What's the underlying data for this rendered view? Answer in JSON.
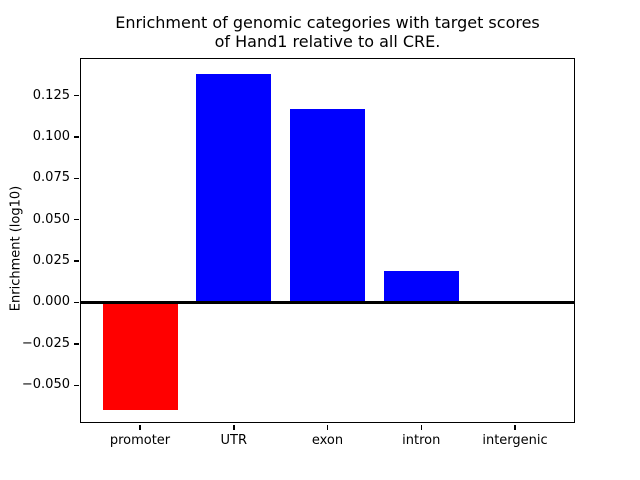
{
  "chart_data": {
    "type": "bar",
    "title": "Enrichment of genomic categories with target scores\nof Hand1 relative to all CRE.",
    "xlabel": "",
    "ylabel": "Enrichment (log10)",
    "categories": [
      "promoter",
      "UTR",
      "exon",
      "intron",
      "intergenic"
    ],
    "values": [
      -0.065,
      0.138,
      0.117,
      0.019,
      0.0
    ],
    "bar_colors": [
      "#ff0000",
      "#0000ff",
      "#0000ff",
      "#0000ff",
      "#0000ff"
    ],
    "positive_color": "#0000ff",
    "negative_color": "#ff0000",
    "ylim": [
      -0.0728,
      0.1477
    ],
    "xlim": [
      -0.64,
      4.64
    ],
    "bar_width": 0.8,
    "yticks": [
      0.125,
      0.1,
      0.075,
      0.05,
      0.025,
      0.0,
      -0.025,
      -0.05
    ],
    "ytick_labels": [
      "0.125",
      "0.100",
      "0.075",
      "0.050",
      "0.025",
      "0.000",
      "−0.025",
      "−0.050"
    ],
    "zero_line": true,
    "grid": false,
    "legend": null,
    "plot_border_color": "#000000",
    "text_color": "#000000",
    "background_color": "#ffffff"
  }
}
